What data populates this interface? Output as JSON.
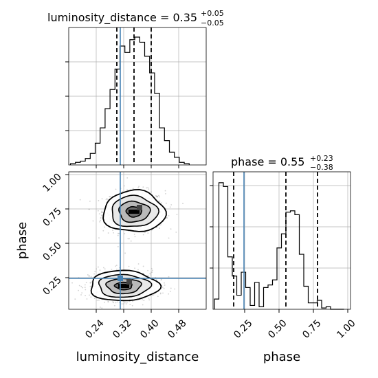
{
  "chart_data": {
    "type": "corner",
    "parameters": [
      "luminosity_distance",
      "phase"
    ],
    "titles": {
      "luminosity_distance": {
        "name": "luminosity_distance",
        "median": "0.35",
        "plus": "+0.05",
        "minus": "−0.05"
      },
      "phase": {
        "name": "phase",
        "median": "0.55",
        "plus": "+0.23",
        "minus": "−0.38"
      }
    },
    "axes": {
      "luminosity_distance": {
        "label": "luminosity_distance",
        "range": [
          0.16,
          0.56
        ],
        "ticks": [
          0.24,
          0.32,
          0.4,
          0.48
        ],
        "tick_labels": [
          "0.24",
          "0.32",
          "0.40",
          "0.48"
        ]
      },
      "phase": {
        "label": "phase",
        "range": [
          0.02,
          1.02
        ],
        "ticks": [
          0.25,
          0.5,
          0.75,
          1.0
        ],
        "tick_labels": [
          "0.25",
          "0.50",
          "0.75",
          "1.00"
        ]
      }
    },
    "truth": {
      "luminosity_distance": 0.31,
      "phase": 0.245
    },
    "quantiles": {
      "luminosity_distance": [
        0.3,
        0.35,
        0.4
      ],
      "phase": [
        0.17,
        0.55,
        0.78
      ]
    },
    "histogram_luminosity_distance": {
      "bin_start": 0.165,
      "bin_width": 0.0144,
      "heights": [
        0.01,
        0.02,
        0.03,
        0.05,
        0.09,
        0.17,
        0.29,
        0.44,
        0.59,
        0.75,
        0.93,
        0.88,
        0.98,
        1.0,
        0.96,
        0.85,
        0.72,
        0.56,
        0.29,
        0.19,
        0.1,
        0.06,
        0.02,
        0.01
      ]
    },
    "histogram_phase": {
      "bin_start": 0.03,
      "bin_width": 0.0325,
      "heights": [
        0.08,
        0.99,
        0.96,
        0.41,
        0.26,
        0.11,
        0.29,
        0.17,
        0.03,
        0.21,
        0.02,
        0.17,
        0.19,
        0.23,
        0.48,
        0.59,
        0.76,
        0.77,
        0.74,
        0.43,
        0.18,
        0.05,
        0.05,
        0.07,
        0.01,
        0.02,
        0.0,
        0.0,
        0.0
      ]
    },
    "clusters_2d": [
      {
        "center": [
          0.35,
          0.73
        ],
        "sd": [
          0.045,
          0.075
        ]
      },
      {
        "center": [
          0.32,
          0.19
        ],
        "sd": [
          0.05,
          0.055
        ]
      }
    ],
    "grid": true,
    "colors": {
      "truth": "#4682b4",
      "line": "#000000",
      "points": "#9a9a9a",
      "grid": "#b0b0b0"
    }
  }
}
